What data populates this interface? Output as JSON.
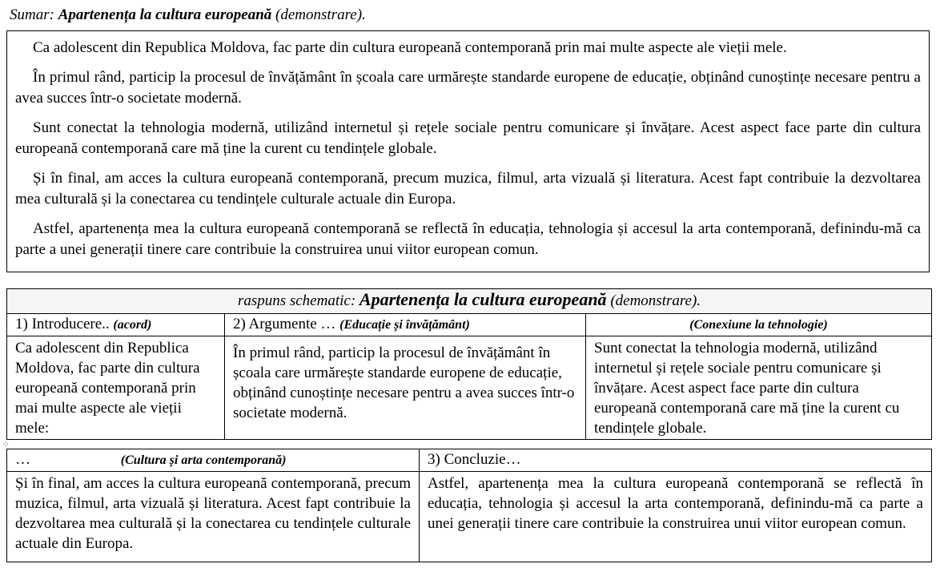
{
  "summary": {
    "prefix": "Sumar: ",
    "title": "Apartenența la cultura europeană",
    "suffix": " (demonstrare).",
    "paragraphs": [
      "Ca adolescent din Republica Moldova, fac parte din cultura europeană contemporană prin mai multe aspecte ale vieții mele.",
      "În primul rând, particip la procesul de învățământ în școala care urmărește standarde europene de educație, obținând cunoștințe necesare pentru a avea succes într-o societate modernă.",
      "Sunt conectat la tehnologia modernă, utilizând internetul și rețele sociale pentru comunicare și învățare. Acest aspect face parte din cultura europeană contemporană care mă ține la curent cu tendințele globale.",
      "Și în final, am acces la cultura europeană contemporană, precum muzica, filmul, arta vizuală și literatura. Acest fapt contribuie la dezvoltarea mea culturală și la conectarea cu tendințele culturale actuale din Europa.",
      "Astfel, apartenența mea la cultura europeană contemporană se reflectă în educația, tehnologia și accesul la arta contemporană, definindu-mă ca parte a unei generații tinere care contribuie la construirea unui viitor european comun."
    ]
  },
  "schema": {
    "title_prefix": "raspuns schematic: ",
    "title": "Apartenența la cultura europeană",
    "title_suffix": " (demonstrare).",
    "headers": {
      "intro_label": "1) Introducere.. ",
      "intro_note": "(acord)",
      "args_label": "2) Argumente … ",
      "args_note": "(Educație și învățământ)",
      "tech_note": "(Conexiune la tehnologie)",
      "culture_label": " … ",
      "culture_note": "(Cultura și arta contemporană)",
      "conclusion_label": "3) Concluzie…"
    },
    "cells": {
      "intro": "Ca adolescent din Republica Moldova, fac parte din cultura europeană contemporană prin mai multe aspecte ale vieții mele:",
      "education": "În primul rând, particip la procesul de învățământ în școala care urmărește standarde europene de educație, obținând cunoștințe necesare pentru a avea succes într-o societate modernă.",
      "technology": "Sunt conectat la tehnologia modernă, utilizând internetul și rețele sociale pentru comunicare și învățare. Acest aspect face parte din cultura europeană contemporană care mă ține la curent cu tendințele globale.",
      "culture": "Și în final, am acces la cultura europeană contemporană, precum muzica, filmul, arta vizuală și literatura. Acest fapt contribuie la dezvoltarea mea culturală și la conectarea cu tendințele culturale actuale din Europa.",
      "conclusion": "Astfel, apartenența mea la cultura europeană contemporană se reflectă în educația, tehnologia și accesul la arta contemporană, definindu-mă ca parte a unei generații tinere care contribuie la construirea unui viitor european comun."
    }
  },
  "table_move_handle_glyph": "⁘"
}
